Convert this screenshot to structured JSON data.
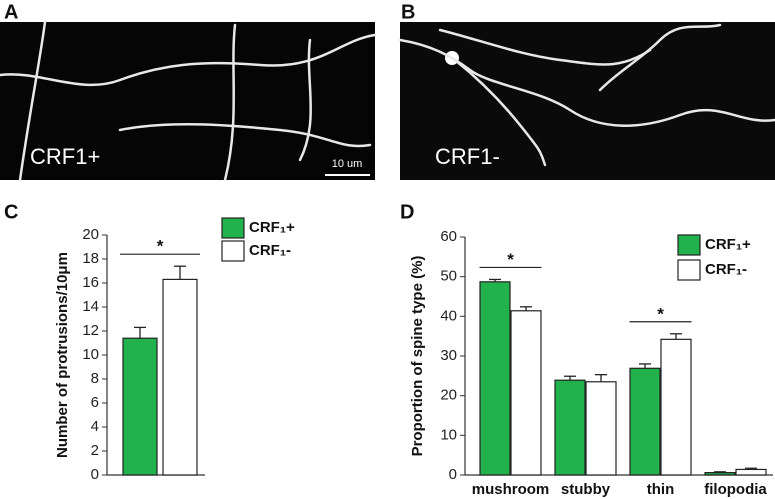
{
  "panel_labels": [
    "A",
    "B",
    "C",
    "D"
  ],
  "images": [
    {
      "label": "CRF1+",
      "scale_bar": "10 um"
    },
    {
      "label": "CRF1-"
    }
  ],
  "chart_data": [
    {
      "type": "bar",
      "y_label": "Number of protrusions/10μm",
      "categories": [
        null
      ],
      "series": [
        {
          "name": "CRF₁+",
          "color": "#22b24c",
          "values": [
            11.4
          ],
          "errors": [
            0.9
          ]
        },
        {
          "name": "CRF₁-",
          "color": "#ffffff",
          "values": [
            16.3
          ],
          "errors": [
            1.1
          ]
        }
      ],
      "ylim": [
        0,
        20
      ],
      "yticks": [
        0,
        2,
        4,
        6,
        8,
        10,
        12,
        14,
        16,
        18,
        20
      ],
      "annotations": [
        {
          "text": "*",
          "category": 0
        }
      ]
    },
    {
      "type": "bar",
      "y_label": "Proportion of spine type (%)",
      "categories": [
        "mushroom",
        "stubby",
        "thin",
        "filopodia"
      ],
      "series": [
        {
          "name": "CRF₁+",
          "color": "#22b24c",
          "values": [
            48.7,
            23.9,
            26.9,
            0.6
          ],
          "errors": [
            0.6,
            1.0,
            1.1,
            0.2
          ]
        },
        {
          "name": "CRF₁-",
          "color": "#ffffff",
          "values": [
            41.4,
            23.5,
            34.2,
            1.4
          ],
          "errors": [
            1.0,
            1.8,
            1.4,
            0.3
          ]
        }
      ],
      "ylim": [
        0,
        60
      ],
      "yticks": [
        0,
        10,
        20,
        30,
        40,
        50,
        60
      ],
      "annotations": [
        {
          "text": "*",
          "category": 0
        },
        {
          "text": "*",
          "category": 2
        }
      ]
    }
  ]
}
